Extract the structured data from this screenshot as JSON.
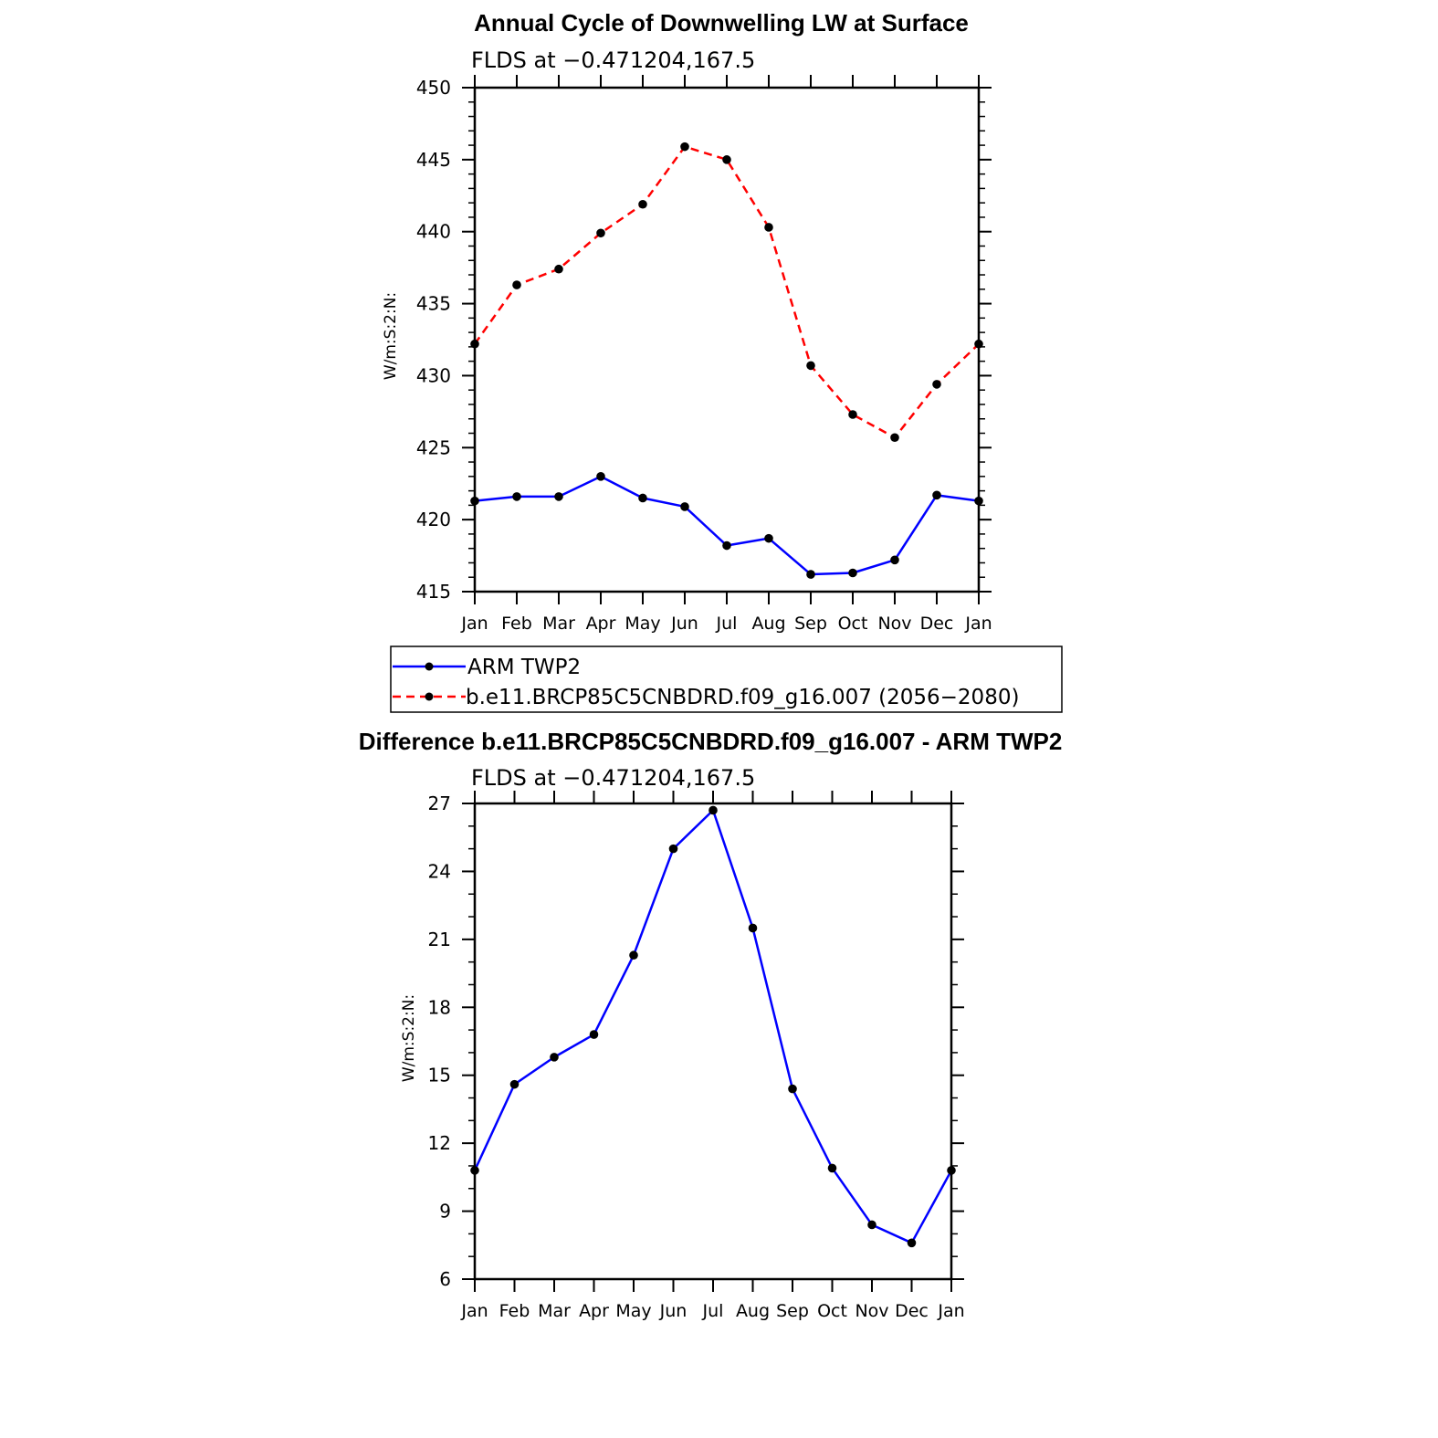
{
  "chart_data": [
    {
      "type": "line",
      "title": "Annual Cycle of Downwelling LW at Surface",
      "subtitle": "FLDS at −0.471204,167.5",
      "xlabel": "",
      "ylabel": "W/m:S:2:N:",
      "categories": [
        "Jan",
        "Feb",
        "Mar",
        "Apr",
        "May",
        "Jun",
        "Jul",
        "Aug",
        "Sep",
        "Oct",
        "Nov",
        "Dec",
        "Jan"
      ],
      "ylim": [
        415,
        450
      ],
      "yticks": [
        415,
        420,
        425,
        430,
        435,
        440,
        445,
        450
      ],
      "y_minor_step": 1,
      "grid": false,
      "legend_position": "below",
      "series": [
        {
          "name": "ARM TWP2",
          "color": "#0000ff",
          "dashed": false,
          "values": [
            421.3,
            421.6,
            421.6,
            423.0,
            421.5,
            420.9,
            418.2,
            418.7,
            416.2,
            416.3,
            417.2,
            421.7,
            421.3
          ]
        },
        {
          "name": "b.e11.BRCP85C5CNBDRD.f09_g16.007 (2056−2080)",
          "color": "#ff0000",
          "dashed": true,
          "values": [
            432.2,
            436.3,
            437.4,
            439.9,
            441.9,
            445.9,
            445.0,
            440.3,
            430.7,
            427.3,
            425.7,
            429.4,
            432.2
          ]
        }
      ]
    },
    {
      "type": "line",
      "title": "Difference b.e11.BRCP85C5CNBDRD.f09_g16.007 - ARM TWP2",
      "subtitle": "FLDS at −0.471204,167.5",
      "xlabel": "",
      "ylabel": "W/m:S:2:N:",
      "categories": [
        "Jan",
        "Feb",
        "Mar",
        "Apr",
        "May",
        "Jun",
        "Jul",
        "Aug",
        "Sep",
        "Oct",
        "Nov",
        "Dec",
        "Jan"
      ],
      "ylim": [
        6,
        27
      ],
      "yticks": [
        6,
        9,
        12,
        15,
        18,
        21,
        24,
        27
      ],
      "y_minor_step": 1,
      "grid": false,
      "series": [
        {
          "color": "#0000ff",
          "dashed": false,
          "values": [
            10.8,
            14.6,
            15.8,
            16.8,
            20.3,
            25.0,
            26.7,
            21.5,
            14.4,
            10.9,
            8.4,
            7.6,
            10.8
          ]
        }
      ]
    }
  ]
}
